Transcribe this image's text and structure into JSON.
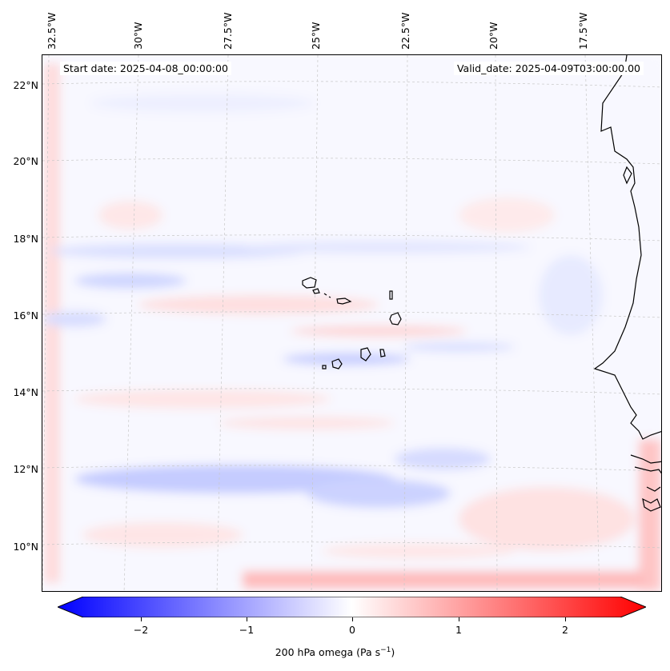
{
  "map": {
    "start_date": "Start date: 2025-04-08_00:00:00",
    "valid_date": "Valid_date: 2025-04-09T03:00:00.00",
    "lon_labels": [
      "32.5°W",
      "30°W",
      "27.5°W",
      "25°W",
      "22.5°W",
      "20°W",
      "17.5°W"
    ],
    "lat_labels": [
      "22°N",
      "20°N",
      "18°N",
      "16°N",
      "14°N",
      "12°N",
      "10°N"
    ],
    "colorbar": {
      "ticks": [
        "−2",
        "−1",
        "0",
        "1",
        "2"
      ],
      "label_prefix": "200 hPa omega (Pa s",
      "label_exp": "−1",
      "label_suffix": ")",
      "colors": {
        "neg": "#0000ff",
        "zero": "#ffffff",
        "pos": "#ff0000"
      }
    }
  }
}
